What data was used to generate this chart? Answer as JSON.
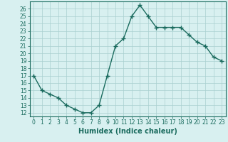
{
  "x": [
    0,
    1,
    2,
    3,
    4,
    5,
    6,
    7,
    8,
    9,
    10,
    11,
    12,
    13,
    14,
    15,
    16,
    17,
    18,
    19,
    20,
    21,
    22,
    23
  ],
  "y": [
    17,
    15,
    14.5,
    14,
    13,
    12.5,
    12,
    12,
    13,
    17,
    21,
    22,
    25,
    26.5,
    25,
    23.5,
    23.5,
    23.5,
    23.5,
    22.5,
    21.5,
    21,
    19.5,
    19
  ],
  "line_color": "#1a6b5e",
  "marker": "+",
  "marker_size": 4,
  "marker_linewidth": 1.0,
  "line_width": 1.0,
  "bg_color": "#d8f0f0",
  "grid_color": "#aacfcf",
  "xlabel": "Humidex (Indice chaleur)",
  "xlim": [
    -0.5,
    23.5
  ],
  "ylim": [
    11.5,
    27
  ],
  "yticks": [
    12,
    13,
    14,
    15,
    16,
    17,
    18,
    19,
    20,
    21,
    22,
    23,
    24,
    25,
    26
  ],
  "xticks": [
    0,
    1,
    2,
    3,
    4,
    5,
    6,
    7,
    8,
    9,
    10,
    11,
    12,
    13,
    14,
    15,
    16,
    17,
    18,
    19,
    20,
    21,
    22,
    23
  ],
  "tick_label_fontsize": 5.5,
  "xlabel_fontsize": 7
}
